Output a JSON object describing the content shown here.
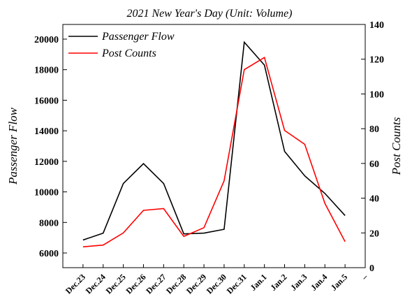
{
  "chart_data": {
    "type": "line",
    "title": "2021 New Year's Day (Unit: Volume)",
    "y_label": "Passenger Flow",
    "y2_label": "Post Counts",
    "categories": [
      "Dec.23",
      "Dec.24",
      "Dec.25",
      "Dec.26",
      "Dec.27",
      "Dec.28",
      "Dec.29",
      "Dec.30",
      "Dec.31",
      "Jan.1",
      "Jan.2",
      "Jan.3",
      "Jan.4",
      "Jan.5",
      "–"
    ],
    "series": [
      {
        "name": "Passenger Flow",
        "color": "#000000",
        "values": [
          6850,
          7300,
          10550,
          11850,
          10550,
          7250,
          7300,
          7550,
          19800,
          18300,
          12650,
          11050,
          9900,
          8450,
          null
        ]
      },
      {
        "name": "Post Counts",
        "color": "#ff0000",
        "axis": "y2",
        "values": [
          12,
          13,
          20,
          33,
          34,
          18,
          23,
          50,
          114,
          121,
          79,
          71,
          37,
          15,
          null
        ]
      }
    ],
    "ylim": [
      5040,
      20960
    ],
    "yticks": [
      6000,
      8000,
      10000,
      12000,
      14000,
      16000,
      18000,
      20000
    ],
    "y2lim": [
      0,
      140
    ],
    "y2ticks": [
      0,
      20,
      40,
      60,
      80,
      100,
      120,
      140
    ],
    "legend": "top-left"
  }
}
